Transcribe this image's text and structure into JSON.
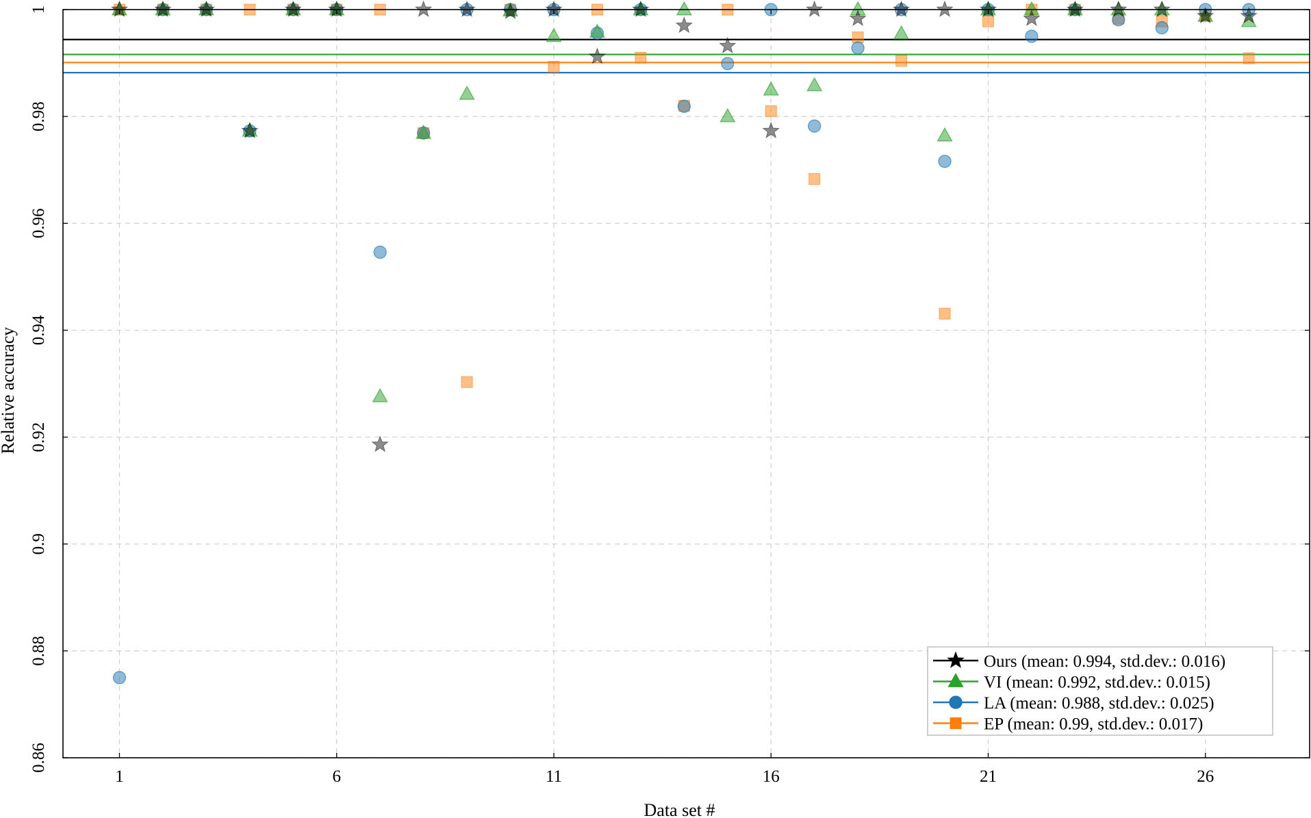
{
  "chart_data": {
    "type": "scatter",
    "title": "",
    "xlabel": "Data set #",
    "ylabel": "Relative accuracy",
    "xlim": [
      -0.3,
      28.4
    ],
    "ylim": [
      0.86,
      1.0
    ],
    "xticks": [
      1,
      6,
      11,
      16,
      21,
      26
    ],
    "yticks": [
      0.86,
      0.88,
      0.9,
      0.92,
      0.94,
      0.96,
      0.98,
      1
    ],
    "ytick_labels": [
      "0.86",
      "0.88",
      "0.9",
      "0.92",
      "0.94",
      "0.96",
      "0.98",
      "1"
    ],
    "grid": true,
    "legend_position": "bottom-right",
    "series": [
      {
        "name": "Ours (mean: 0.994, std.dev.: 0.016)",
        "marker": "star",
        "color": "#000000",
        "mean": 0.9944,
        "x": [
          1,
          2,
          3,
          4,
          5,
          6,
          7,
          8,
          9,
          10,
          11,
          12,
          13,
          14,
          15,
          16,
          17,
          18,
          19,
          20,
          21,
          22,
          23,
          24,
          25,
          26,
          27
        ],
        "values": [
          1.0,
          1.0,
          1.0,
          0.9773,
          1.0,
          1.0,
          0.9186,
          1.0,
          1.0,
          0.9996,
          1.0,
          0.9912,
          1.0,
          0.997,
          0.9932,
          0.9773,
          1.0,
          0.9983,
          1.0,
          1.0,
          1.0,
          0.9983,
          1.0,
          1.0,
          1.0,
          0.9988,
          0.9988
        ]
      },
      {
        "name": "VI (mean: 0.992, std.dev.: 0.015)",
        "marker": "triangle",
        "color": "#2ca02c",
        "mean": 0.9916,
        "x": [
          1,
          2,
          3,
          4,
          5,
          6,
          7,
          8,
          9,
          10,
          11,
          12,
          13,
          14,
          15,
          16,
          17,
          18,
          19,
          20,
          21,
          22,
          23,
          24,
          25,
          26,
          27
        ],
        "values": [
          1.0,
          1.0,
          1.0,
          0.9773,
          1.0,
          1.0,
          0.9276,
          0.9769,
          0.9842,
          0.9998,
          0.995,
          0.9958,
          1.0,
          1.0,
          0.98,
          0.985,
          0.9858,
          1.0,
          0.9955,
          0.9764,
          1.0,
          1.0,
          1.0,
          1.0,
          1.0,
          0.9988,
          0.9978
        ]
      },
      {
        "name": "LA (mean: 0.988, std.dev.: 0.025)",
        "marker": "circle",
        "color": "#1f77b4",
        "mean": 0.9882,
        "x": [
          1,
          2,
          3,
          4,
          5,
          6,
          7,
          8,
          9,
          10,
          11,
          12,
          13,
          14,
          15,
          16,
          17,
          18,
          19,
          20,
          21,
          22,
          23,
          24,
          25,
          26,
          27
        ],
        "values": [
          0.875,
          1.0,
          1.0,
          0.9773,
          1.0,
          1.0,
          0.9546,
          0.9769,
          1.0,
          1.0,
          1.0,
          0.9956,
          1.0,
          0.9819,
          0.9899,
          1.0,
          0.9782,
          0.9928,
          1.0,
          0.9716,
          1.0,
          0.995,
          1.0,
          0.9981,
          0.9966,
          1.0,
          1.0
        ]
      },
      {
        "name": "EP (mean: 0.99, std.dev.: 0.017)",
        "marker": "square",
        "color": "#ff7f0e",
        "mean": 0.9901,
        "x": [
          1,
          2,
          3,
          4,
          5,
          6,
          7,
          8,
          9,
          10,
          11,
          12,
          13,
          14,
          15,
          16,
          17,
          18,
          19,
          20,
          21,
          22,
          23,
          24,
          25,
          26,
          27
        ],
        "values": [
          1.0,
          1.0,
          1.0,
          1.0,
          1.0,
          1.0,
          1.0,
          0.9769,
          0.9303,
          1.0,
          0.9893,
          1.0,
          0.991,
          0.982,
          1.0,
          0.981,
          0.9683,
          0.9948,
          0.9904,
          0.9431,
          0.9978,
          1.0,
          1.0,
          0.9983,
          0.9978,
          0.999,
          0.9909
        ]
      }
    ]
  }
}
